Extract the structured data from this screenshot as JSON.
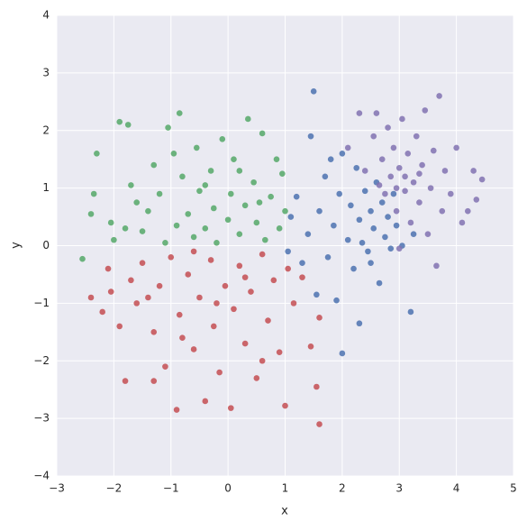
{
  "chart_data": {
    "type": "scatter",
    "xlabel": "x",
    "ylabel": "y",
    "xlim": [
      -3,
      5
    ],
    "ylim": [
      -4,
      4
    ],
    "xticks": [
      {
        "value": -3,
        "label": "−3"
      },
      {
        "value": -2,
        "label": "−2"
      },
      {
        "value": -1,
        "label": "−1"
      },
      0,
      1,
      2,
      3,
      4,
      5
    ],
    "yticks": [
      {
        "value": -4,
        "label": "−4"
      },
      {
        "value": -3,
        "label": "−3"
      },
      {
        "value": -2,
        "label": "−2"
      },
      {
        "value": -1,
        "label": "−1"
      },
      0,
      1,
      2,
      3,
      4
    ],
    "grid": true,
    "series": [
      {
        "color": "#55a868",
        "x": [
          -2.55,
          -2.4,
          -2.35,
          -2.3,
          -2.0,
          -2.05,
          -1.9,
          -1.75,
          -1.7,
          -1.6,
          -1.5,
          -1.4,
          -1.3,
          -1.2,
          -1.1,
          -1.05,
          -0.9,
          -0.85,
          -0.8,
          -0.7,
          -0.6,
          -0.55,
          -0.5,
          -0.4,
          -0.3,
          -0.25,
          -0.2,
          -0.1,
          0.0,
          0.05,
          0.1,
          0.2,
          0.3,
          0.35,
          0.45,
          0.5,
          0.6,
          0.65,
          0.75,
          0.85,
          0.9,
          0.95,
          1.0,
          -1.8,
          -0.95,
          0.2,
          -0.4,
          0.55
        ],
        "values": [
          -0.23,
          0.55,
          0.9,
          1.6,
          0.1,
          0.4,
          2.15,
          2.1,
          1.05,
          0.75,
          0.25,
          0.6,
          1.4,
          0.9,
          0.05,
          2.05,
          0.35,
          2.3,
          1.2,
          0.55,
          0.15,
          1.7,
          0.95,
          0.3,
          1.3,
          0.65,
          0.05,
          1.85,
          0.45,
          0.9,
          1.5,
          0.2,
          0.7,
          2.2,
          1.1,
          0.4,
          1.95,
          0.1,
          0.85,
          1.5,
          0.3,
          1.25,
          0.6,
          0.3,
          1.6,
          1.3,
          1.05,
          0.75
        ]
      },
      {
        "color": "#c44e52",
        "x": [
          -2.4,
          -2.2,
          -2.1,
          -2.05,
          -1.9,
          -1.8,
          -1.7,
          -1.6,
          -1.5,
          -1.3,
          -1.3,
          -1.2,
          -1.1,
          -1.0,
          -0.9,
          -0.85,
          -0.7,
          -0.6,
          -0.5,
          -0.4,
          -0.3,
          -0.25,
          -0.15,
          -0.05,
          0.05,
          0.1,
          0.2,
          0.3,
          0.4,
          0.5,
          0.6,
          0.7,
          0.8,
          0.9,
          1.0,
          1.05,
          1.15,
          1.3,
          1.45,
          1.55,
          1.6,
          1.6,
          -0.6,
          0.3,
          -0.2,
          -1.4,
          0.6,
          -0.8
        ],
        "values": [
          -0.9,
          -1.15,
          -0.4,
          -0.8,
          -1.4,
          -2.35,
          -0.6,
          -1.0,
          -0.3,
          -2.35,
          -1.5,
          -0.7,
          -2.1,
          -0.2,
          -2.85,
          -1.2,
          -0.5,
          -1.8,
          -0.9,
          -2.7,
          -0.25,
          -1.4,
          -2.2,
          -0.7,
          -2.82,
          -1.1,
          -0.35,
          -1.7,
          -0.8,
          -2.3,
          -0.15,
          -1.3,
          -0.6,
          -1.85,
          -2.78,
          -0.4,
          -1.0,
          -0.55,
          -1.75,
          -2.45,
          -3.1,
          -1.25,
          -0.1,
          -0.55,
          -1.0,
          -0.9,
          -2.0,
          -1.6
        ]
      },
      {
        "color": "#4c72b0",
        "x": [
          1.05,
          1.1,
          1.2,
          1.3,
          1.4,
          1.45,
          1.5,
          1.55,
          1.6,
          1.7,
          1.75,
          1.85,
          1.9,
          1.95,
          2.0,
          2.0,
          2.1,
          2.15,
          2.2,
          2.25,
          2.3,
          2.3,
          2.4,
          2.45,
          2.5,
          2.55,
          2.6,
          2.65,
          2.7,
          2.75,
          2.8,
          2.85,
          2.9,
          2.95,
          3.05,
          3.2,
          3.25,
          1.8,
          2.35,
          2.5
        ],
        "values": [
          -0.1,
          0.5,
          0.85,
          -0.3,
          0.2,
          1.9,
          2.68,
          -0.85,
          0.6,
          1.2,
          -0.2,
          0.35,
          -0.95,
          0.9,
          1.6,
          -1.87,
          0.1,
          0.7,
          -0.4,
          1.35,
          -1.35,
          0.45,
          0.95,
          -0.1,
          0.6,
          0.3,
          1.1,
          -0.65,
          0.75,
          0.15,
          0.5,
          -0.05,
          0.9,
          0.35,
          0.0,
          -1.15,
          0.2,
          1.5,
          0.05,
          -0.3
        ]
      },
      {
        "color": "#8172b2",
        "x": [
          2.1,
          2.3,
          2.4,
          2.55,
          2.6,
          2.7,
          2.75,
          2.8,
          2.85,
          2.9,
          2.95,
          3.0,
          3.05,
          3.1,
          3.15,
          3.2,
          3.25,
          3.3,
          3.35,
          3.4,
          3.45,
          3.5,
          3.55,
          3.6,
          3.65,
          3.7,
          3.75,
          3.8,
          3.9,
          4.0,
          4.1,
          4.2,
          4.3,
          4.45,
          4.35,
          3.0,
          2.65,
          3.1,
          3.35,
          2.95
        ],
        "values": [
          1.7,
          2.3,
          1.3,
          1.9,
          2.3,
          1.5,
          0.9,
          2.05,
          1.2,
          1.7,
          0.6,
          1.35,
          2.2,
          0.95,
          1.6,
          0.4,
          1.1,
          1.9,
          0.75,
          1.4,
          2.35,
          0.2,
          1.0,
          1.65,
          -0.35,
          2.6,
          0.6,
          1.3,
          0.9,
          1.7,
          0.4,
          0.6,
          1.3,
          1.15,
          0.8,
          -0.05,
          1.05,
          1.2,
          1.25,
          1.0
        ]
      }
    ]
  }
}
